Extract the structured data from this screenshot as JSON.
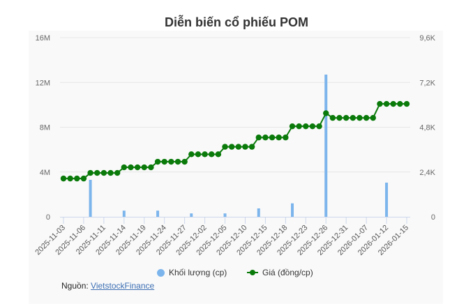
{
  "title": "Diễn biến cổ phiếu POM",
  "legend": {
    "volume_label": "Khối lượng (cp)",
    "price_label": "Giá (đồng/cp)"
  },
  "source": {
    "prefix": "Nguồn:",
    "link_text": "VietstockFinance"
  },
  "colors": {
    "volume": "#7cb5ec",
    "price": "#0a7a0a",
    "panel_bg": "#f9f9f9",
    "grid": "#e6e6e6"
  },
  "chart_data": {
    "type": "bar+line",
    "title": "Diễn biến cổ phiếu POM",
    "xlabel": "",
    "ylabel_left": "Khối lượng (cp)",
    "ylabel_right": "Giá (đồng/cp)",
    "ylim_left": [
      0,
      16000000
    ],
    "ylim_right": [
      0,
      9600
    ],
    "left_ticks": [
      "0",
      "4M",
      "8M",
      "12M",
      "16M"
    ],
    "right_ticks": [
      "0",
      "2,4K",
      "4,8K",
      "7,2K",
      "9,6K"
    ],
    "x_tick_labels": [
      "2025-11-03",
      "2025-11-06",
      "2025-11-11",
      "2025-11-14",
      "2025-11-19",
      "2025-11-24",
      "2025-11-27",
      "2025-12-02",
      "2025-12-05",
      "2025-12-10",
      "2025-12-15",
      "2025-12-18",
      "2025-12-23",
      "2025-12-26",
      "2025-12-31",
      "2026-01-07",
      "2026-01-12",
      "2026-01-15"
    ],
    "grid": true,
    "legend_position": "bottom",
    "n_points": 52,
    "series": [
      {
        "name": "Khối lượng (cp)",
        "type": "bar",
        "axis": "left",
        "values": [
          0,
          0,
          0,
          0,
          3300000,
          0,
          0,
          0,
          0,
          550000,
          0,
          0,
          0,
          0,
          550000,
          0,
          0,
          0,
          0,
          300000,
          0,
          0,
          0,
          0,
          300000,
          0,
          0,
          0,
          0,
          750000,
          0,
          0,
          0,
          0,
          1200000,
          0,
          0,
          0,
          0,
          12700000,
          0,
          0,
          0,
          0,
          0,
          0,
          0,
          0,
          3050000,
          0,
          0,
          0
        ]
      },
      {
        "name": "Giá (đồng/cp)",
        "type": "line",
        "axis": "right",
        "values": [
          2050,
          2050,
          2050,
          2050,
          2350,
          2350,
          2350,
          2350,
          2350,
          2650,
          2650,
          2650,
          2650,
          2650,
          2950,
          2950,
          2950,
          2950,
          2950,
          3350,
          3350,
          3350,
          3350,
          3350,
          3750,
          3750,
          3750,
          3750,
          3750,
          4250,
          4250,
          4250,
          4250,
          4250,
          4850,
          4850,
          4850,
          4850,
          4850,
          5550,
          5300,
          5300,
          5300,
          5300,
          5300,
          5300,
          5300,
          6050,
          6050,
          6050,
          6050,
          6050
        ]
      }
    ]
  }
}
